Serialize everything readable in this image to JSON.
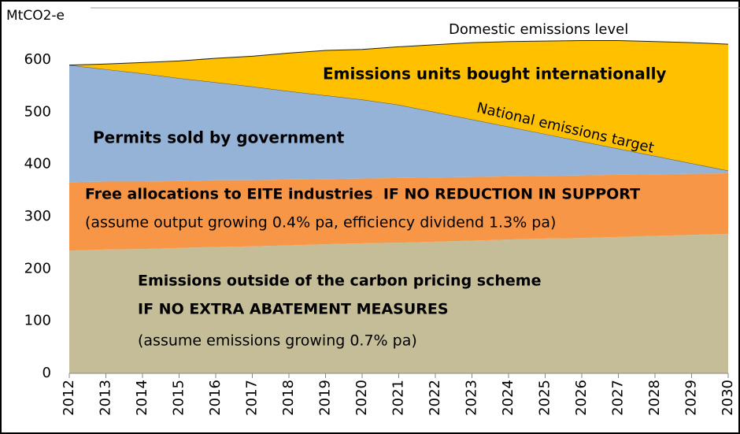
{
  "chart_data": {
    "type": "stacked_area",
    "y_label": "MtCO2-e",
    "x": [
      2012,
      2013,
      2014,
      2015,
      2016,
      2017,
      2018,
      2019,
      2020,
      2021,
      2022,
      2023,
      2024,
      2025,
      2026,
      2027,
      2028,
      2029,
      2030
    ],
    "xlim": [
      2012,
      2030
    ],
    "xticks": [
      2012,
      2013,
      2014,
      2015,
      2016,
      2017,
      2018,
      2019,
      2020,
      2021,
      2022,
      2023,
      2024,
      2025,
      2026,
      2027,
      2028,
      2029,
      2030
    ],
    "ylim": [
      0,
      600
    ],
    "yticks": [
      0,
      100,
      200,
      300,
      400,
      500,
      600
    ],
    "grid": false,
    "series": [
      {
        "name": "Emissions outside of the carbon pricing scheme",
        "color": "#c4bd97",
        "values": [
          235,
          237,
          238,
          240,
          242,
          243,
          245,
          247,
          249,
          250,
          252,
          254,
          256,
          258,
          259,
          261,
          263,
          265,
          267
        ]
      },
      {
        "name": "Free allocations to EITE industries",
        "color": "#f79646",
        "values": [
          131,
          130,
          129,
          128,
          128,
          127,
          126,
          125,
          124,
          124,
          123,
          122,
          121,
          120,
          120,
          119,
          118,
          117,
          116
        ]
      },
      {
        "name": "Permits sold by government",
        "color": "#95b3d7",
        "values": [
          224,
          215,
          207,
          197,
          187,
          179,
          169,
          160,
          151,
          140,
          125,
          110,
          95,
          80,
          65,
          50,
          35,
          20,
          5
        ]
      },
      {
        "name": "Emissions units bought internationally",
        "color": "#ffc000",
        "values": [
          0,
          10,
          21,
          33,
          46,
          58,
          73,
          86,
          96,
          111,
          129,
          147,
          163,
          178,
          193,
          207,
          219,
          231,
          242
        ]
      }
    ],
    "annotations": [
      "Domestic emissions level",
      "Emissions units bought internationally",
      "National emissions target",
      "Permits sold by government",
      "Free allocations to EITE industries  IF NO REDUCTION IN SUPPORT",
      "(assume output growing 0.4% pa, efficiency dividend 1.3% pa)",
      "Emissions outside of the carbon pricing scheme",
      "IF NO EXTRA ABATEMENT MEASURES",
      "(assume emissions growing 0.7% pa)"
    ]
  }
}
